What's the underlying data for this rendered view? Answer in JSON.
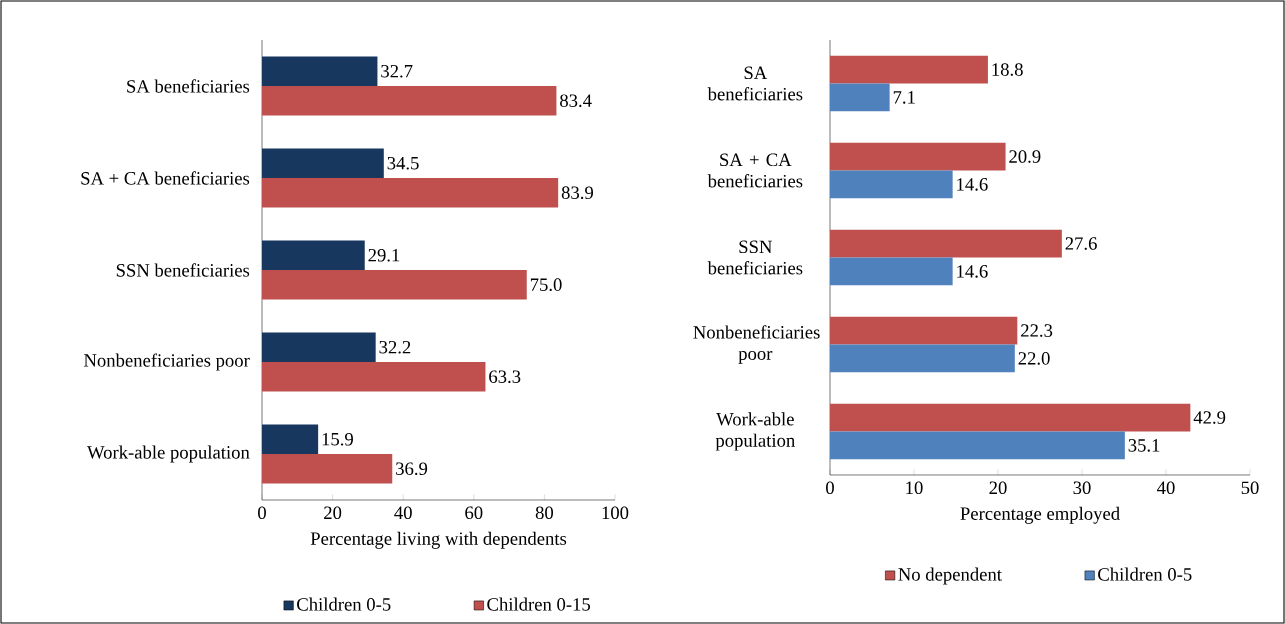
{
  "chart_data": [
    {
      "type": "bar",
      "orientation": "horizontal",
      "xlabel": "Percentage living with dependents",
      "categories": [
        "SA beneficiaries",
        "SA + CA beneficiaries",
        "SSN beneficiaries",
        "Nonbeneficiaries poor",
        "Work-able population"
      ],
      "series": [
        {
          "name": "Children 0-5",
          "color": "#17375e",
          "values": [
            32.7,
            34.5,
            29.1,
            32.2,
            15.9
          ],
          "value_labels": [
            "32.7",
            "34.5",
            "29.1",
            "32.2",
            "15.9"
          ]
        },
        {
          "name": "Children 0-15",
          "color": "#c0504d",
          "values": [
            83.4,
            83.9,
            75.0,
            63.3,
            36.9
          ],
          "value_labels": [
            "83.4",
            "83.9",
            "75.0",
            "63.3",
            "36.9"
          ]
        }
      ],
      "xlim": [
        0,
        100
      ],
      "xticks": [
        0,
        20,
        40,
        60,
        80,
        100
      ],
      "legend": "bottom"
    },
    {
      "type": "bar",
      "orientation": "horizontal",
      "xlabel": "Percentage employed",
      "categories": [
        "SA beneficiaries",
        "SA + CA beneficiaries",
        "SSN beneficiaries",
        "Nonbeneficiaries poor",
        "Work-able population"
      ],
      "series": [
        {
          "name": "No dependent",
          "color": "#c0504d",
          "values": [
            18.8,
            20.9,
            27.6,
            22.3,
            42.9
          ],
          "value_labels": [
            "18.8",
            "20.9",
            "27.6",
            "22.3",
            "42.9"
          ]
        },
        {
          "name": "Children 0-5",
          "color": "#4f81bd",
          "values": [
            7.1,
            14.6,
            14.6,
            22.0,
            35.1
          ],
          "value_labels": [
            "7.1",
            "14.6",
            "14.6",
            "22.0",
            "35.1"
          ]
        }
      ],
      "xlim": [
        0,
        50
      ],
      "xticks": [
        0,
        10,
        20,
        30,
        40,
        50
      ],
      "legend": "bottom"
    }
  ]
}
